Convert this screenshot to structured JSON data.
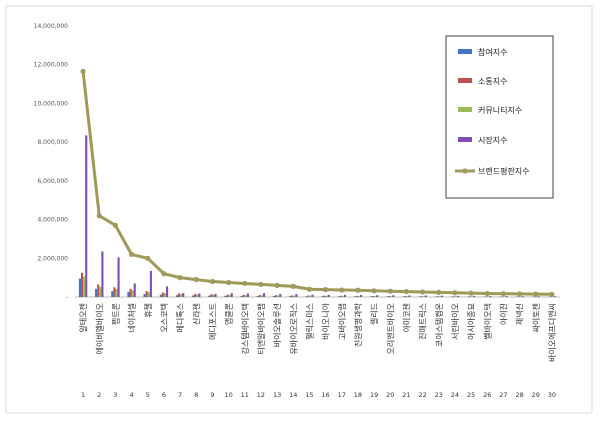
{
  "chart_data": {
    "type": "bar",
    "title": "",
    "xlabel": "",
    "ylabel": "",
    "ylim": [
      0,
      14000000
    ],
    "yticks": [
      {
        "value": 0,
        "label": "-"
      },
      {
        "value": 2000000,
        "label": "2,000,000"
      },
      {
        "value": 4000000,
        "label": "4,000,000"
      },
      {
        "value": 6000000,
        "label": "6,000,000"
      },
      {
        "value": 8000000,
        "label": "8,000,000"
      },
      {
        "value": 10000000,
        "label": "10,000,000"
      },
      {
        "value": 12000000,
        "label": "12,000,000"
      },
      {
        "value": 14000000,
        "label": "14,000,000"
      }
    ],
    "categories": [
      "알테오젠",
      "에이비엘바이오",
      "펩트론",
      "네이처셀",
      "휴젤",
      "오스코텍",
      "메디톡스",
      "신라젠",
      "메디포스트",
      "앱클론",
      "강스템바이오텍",
      "티앤알바이오팹",
      "바이오솔루션",
      "유바이오로직스",
      "헬릭스미스",
      "바이오니아",
      "고바이오랩",
      "진원생명과학",
      "셀리드",
      "오리엔트바이오",
      "아미코젠",
      "진매트릭스",
      "코아스템켐온",
      "서린바이오",
      "아시아종묘",
      "쎌바이오텍",
      "아이진",
      "제넥신",
      "싸이토젠",
      "바이오에프디엔씨"
    ],
    "index_labels": [
      "1",
      "2",
      "3",
      "4",
      "5",
      "6",
      "7",
      "8",
      "9",
      "10",
      "11",
      "12",
      "13",
      "14",
      "15",
      "16",
      "17",
      "18",
      "19",
      "20",
      "21",
      "22",
      "23",
      "24",
      "25",
      "26",
      "27",
      "28",
      "29",
      "30"
    ],
    "grid": false,
    "legend_position": "right",
    "series": [
      {
        "name": "참여지수",
        "kind": "bar",
        "color": "#4472C4",
        "values": [
          950000,
          420000,
          300000,
          260000,
          150000,
          120000,
          90000,
          80000,
          70000,
          60000,
          60000,
          55000,
          50000,
          45000,
          40000,
          40000,
          35000,
          35000,
          30000,
          30000,
          28000,
          26000,
          25000,
          22000,
          22000,
          20000,
          20000,
          18000,
          18000,
          15000
        ]
      },
      {
        "name": "소통지수",
        "kind": "bar",
        "color": "#C0504D",
        "values": [
          1250000,
          650000,
          500000,
          420000,
          300000,
          230000,
          180000,
          160000,
          140000,
          120000,
          110000,
          100000,
          90000,
          80000,
          75000,
          70000,
          65000,
          60000,
          55000,
          55000,
          50000,
          45000,
          42000,
          40000,
          38000,
          35000,
          33000,
          30000,
          28000,
          25000
        ]
      },
      {
        "name": "커뮤니티지수",
        "kind": "bar",
        "color": "#9BBB59",
        "values": [
          1050000,
          520000,
          420000,
          350000,
          250000,
          200000,
          150000,
          130000,
          120000,
          100000,
          90000,
          85000,
          80000,
          70000,
          65000,
          60000,
          55000,
          50000,
          48000,
          45000,
          42000,
          40000,
          38000,
          35000,
          33000,
          30000,
          28000,
          26000,
          24000,
          22000
        ]
      },
      {
        "name": "시장지수",
        "kind": "bar",
        "color": "#7F4DB3",
        "values": [
          8350000,
          2350000,
          2050000,
          700000,
          1350000,
          550000,
          200000,
          180000,
          160000,
          200000,
          180000,
          200000,
          160000,
          150000,
          120000,
          110000,
          110000,
          100000,
          90000,
          90000,
          80000,
          80000,
          70000,
          60000,
          60000,
          50000,
          50000,
          45000,
          40000,
          40000
        ]
      },
      {
        "name": "브랜드평판지수",
        "kind": "line",
        "color": "#A09A5A",
        "values": [
          11650000,
          4200000,
          3700000,
          2200000,
          2000000,
          1200000,
          1000000,
          900000,
          800000,
          750000,
          700000,
          650000,
          600000,
          550000,
          400000,
          380000,
          360000,
          350000,
          320000,
          300000,
          280000,
          260000,
          240000,
          220000,
          200000,
          180000,
          170000,
          160000,
          150000,
          140000
        ]
      }
    ]
  }
}
